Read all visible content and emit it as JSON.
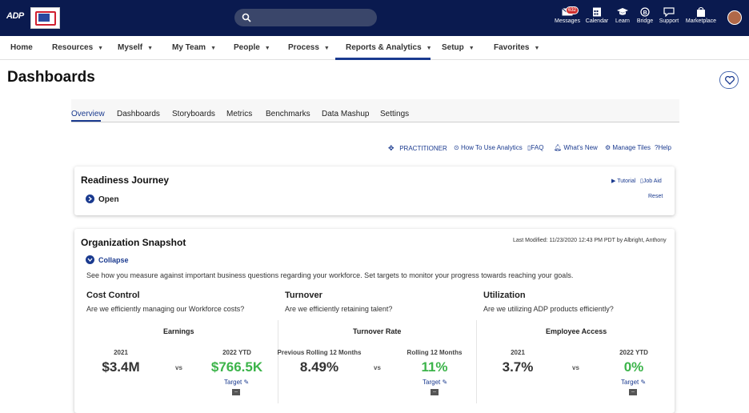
{
  "topbar": {
    "brand": "ADP",
    "icons": [
      {
        "name": "messages",
        "label": "Messages",
        "badge": "632"
      },
      {
        "name": "calendar",
        "label": "Calendar"
      },
      {
        "name": "learn",
        "label": "Learn"
      },
      {
        "name": "bridge",
        "label": "Bridge"
      },
      {
        "name": "support",
        "label": "Support"
      },
      {
        "name": "marketplace",
        "label": "Marketplace"
      }
    ]
  },
  "nav": {
    "items": [
      {
        "label": "Home"
      },
      {
        "label": "Resources"
      },
      {
        "label": "Myself"
      },
      {
        "label": "My Team"
      },
      {
        "label": "People"
      },
      {
        "label": "Process"
      },
      {
        "label": "Reports & Analytics"
      },
      {
        "label": "Setup"
      },
      {
        "label": "Favorites"
      }
    ],
    "active": "Reports & Analytics"
  },
  "page": {
    "title": "Dashboards"
  },
  "tabs": [
    "Overview",
    "Dashboards",
    "Storyboards",
    "Metrics",
    "Benchmarks",
    "Data Mashup",
    "Settings"
  ],
  "utility": {
    "practitioner": "PRACTITIONER",
    "how_to": "How To Use Analytics",
    "faq": "FAQ",
    "whats_new": "What's New",
    "manage_tiles": "Manage Tiles",
    "help": "Help"
  },
  "readiness": {
    "title": "Readiness Journey",
    "tutorial": "Tutorial",
    "job_aid": "Job Aid",
    "reset": "Reset",
    "toggle": "Open"
  },
  "snapshot": {
    "title": "Organization Snapshot",
    "last_modified": "Last Modified: 11/23/2020 12:43 PM PDT by Albright, Anthony",
    "toggle": "Collapse",
    "description": "See how you measure against important business questions regarding your workforce. Set targets to monitor your progress towards reaching your goals.",
    "sections": [
      {
        "heading": "Cost Control",
        "question": "Are we efficiently managing our Workforce costs?",
        "metric": "Earnings",
        "left_label": "2021",
        "left_value": "$3.4M",
        "vs": "vs",
        "right_label": "2022 YTD",
        "right_value": "$766.5K",
        "target": "Target",
        "target_value": "--"
      },
      {
        "heading": "Turnover",
        "question": "Are we efficiently retaining talent?",
        "metric": "Turnover Rate",
        "left_label": "Previous Rolling 12 Months",
        "left_value": "8.49%",
        "vs": "vs",
        "right_label": "Rolling 12 Months",
        "right_value": "11%",
        "target": "Target",
        "target_value": "--"
      },
      {
        "heading": "Utilization",
        "question": "Are we utilizing ADP products efficiently?",
        "metric": "Employee Access",
        "left_label": "2021",
        "left_value": "3.7%",
        "vs": "vs",
        "right_label": "2022 YTD",
        "right_value": "0%",
        "target": "Target",
        "target_value": "--"
      }
    ]
  },
  "colors": {
    "topbar": "#0a1a4f",
    "accent": "#1a3a8f",
    "positive": "#3cb44a"
  }
}
